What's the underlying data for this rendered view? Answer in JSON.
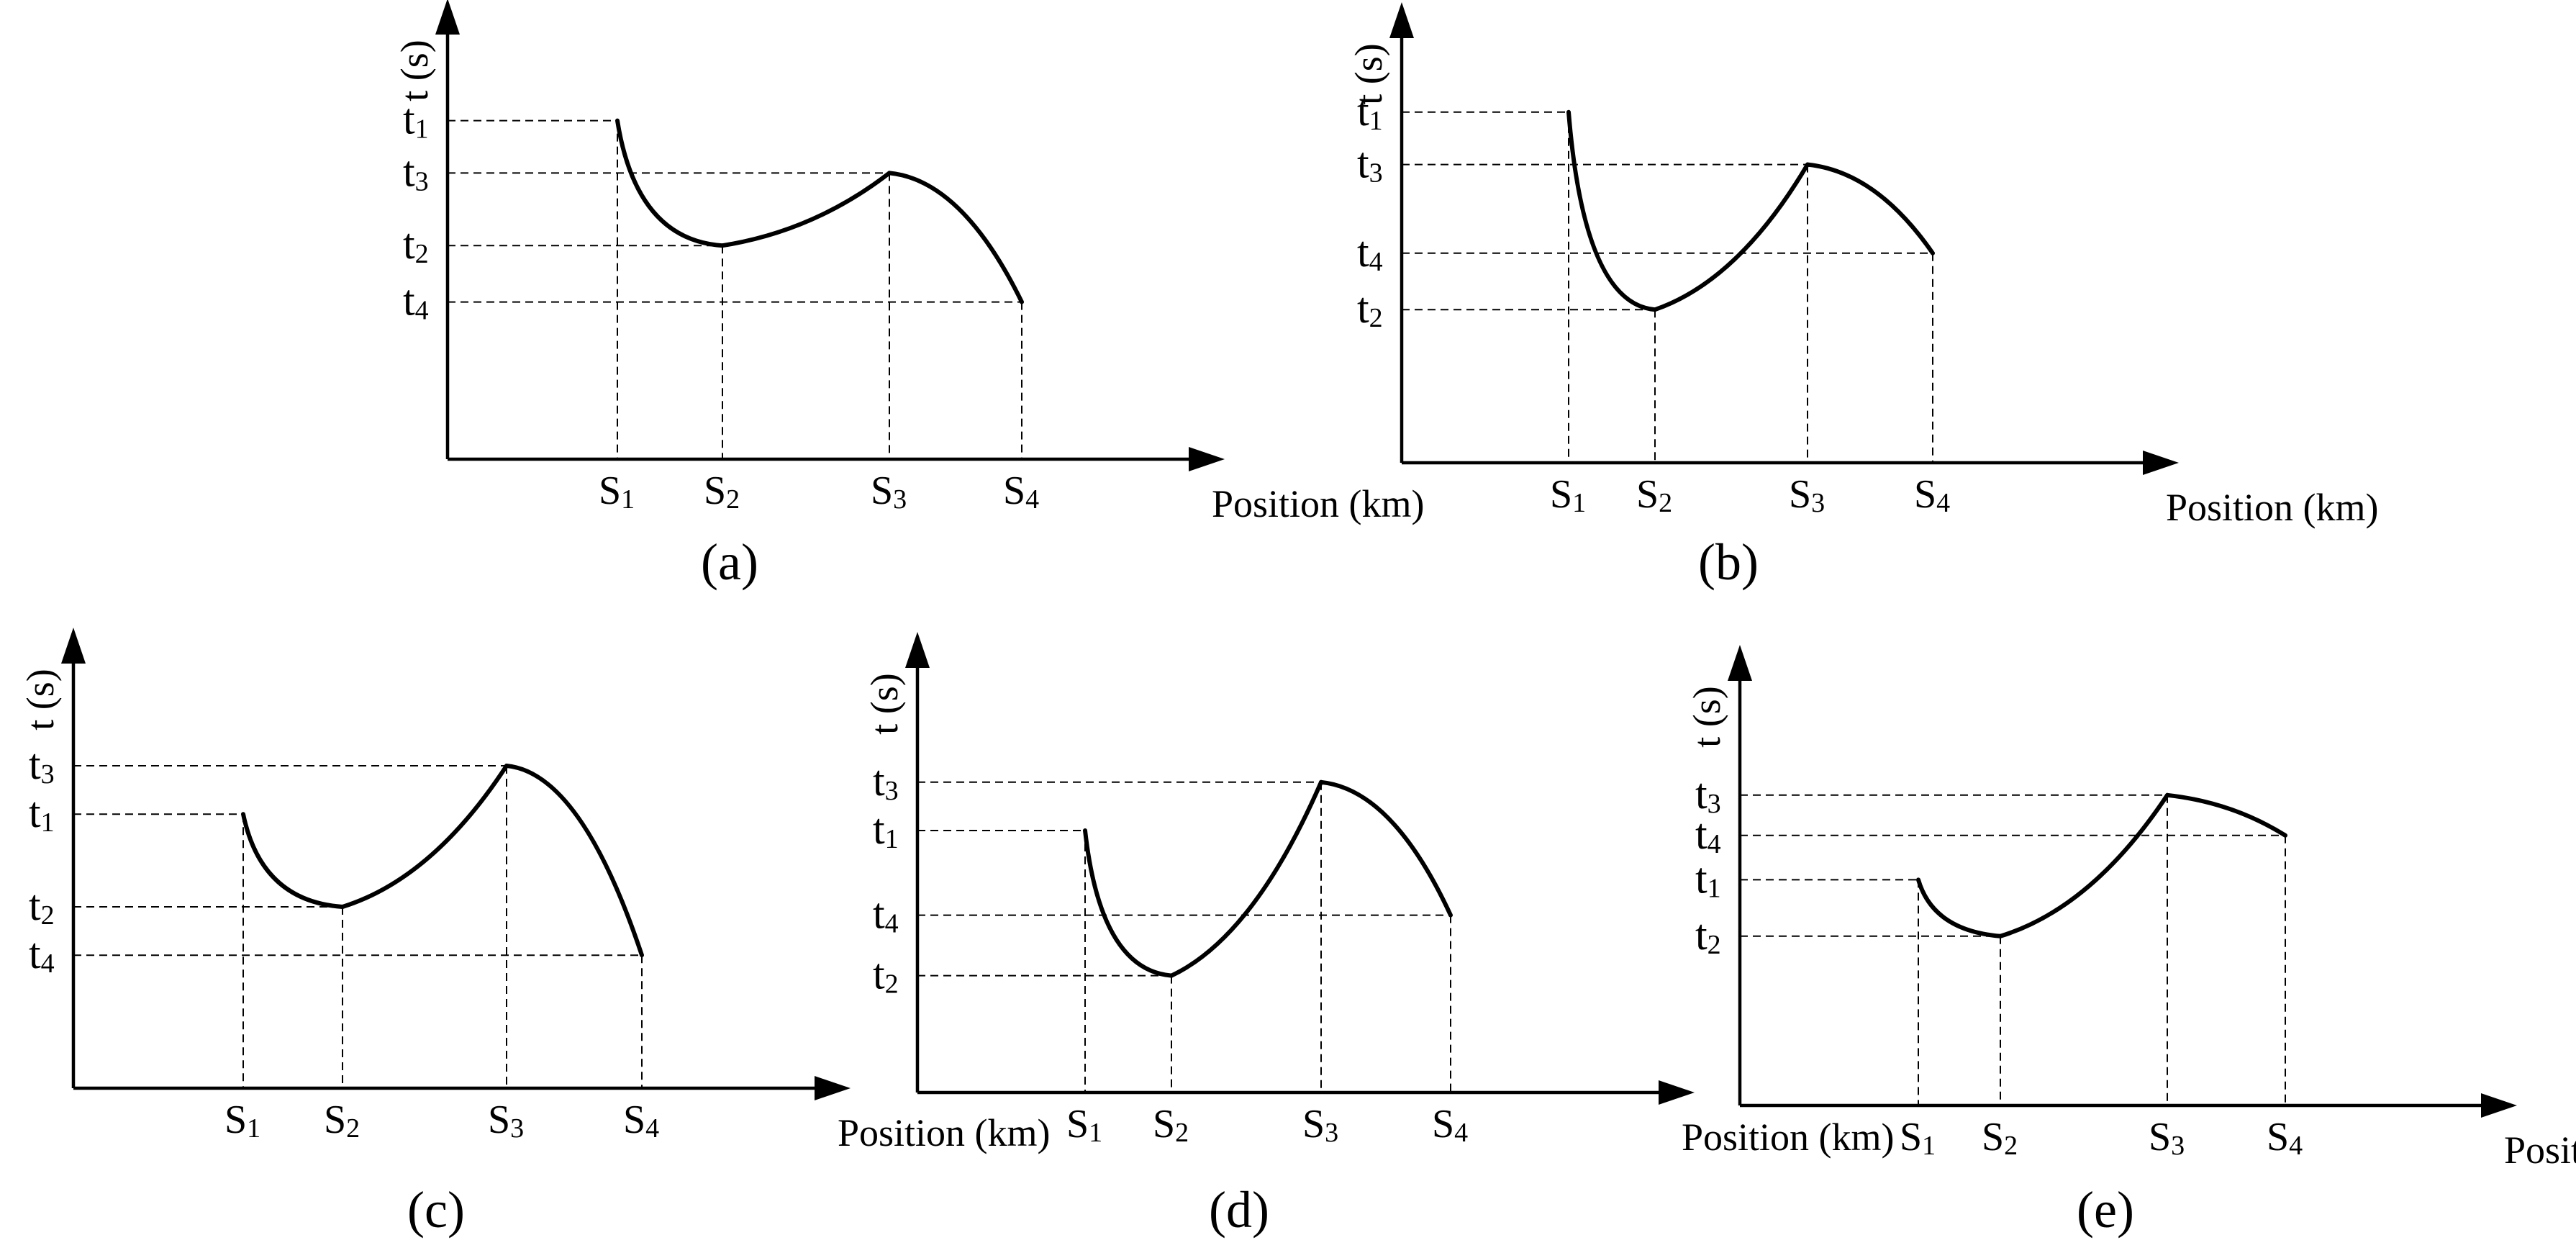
{
  "figure": {
    "y_axis_label": "t (s)",
    "x_axis_label": "Position (km)",
    "position_symbol": "S",
    "time_symbol": "t",
    "point_indices": [
      "1",
      "2",
      "3",
      "4"
    ]
  },
  "chart_data": [
    {
      "type": "line",
      "caption": "(a)",
      "xlabel": "Position (km)",
      "ylabel": "t (s)",
      "x": [
        "S1",
        "S2",
        "S3",
        "S4"
      ],
      "values": {
        "t1": 0.84,
        "t2": 0.53,
        "t3": 0.71,
        "t4": 0.39
      },
      "segments": [
        {
          "from": "S1",
          "to": "S2",
          "shape": "concave-up descending"
        },
        {
          "from": "S2",
          "to": "S3",
          "shape": "convex ascending"
        },
        {
          "from": "S3",
          "to": "S4",
          "shape": "concave-down descending"
        }
      ]
    },
    {
      "type": "line",
      "caption": "(b)",
      "xlabel": "Position (km)",
      "ylabel": "t (s)",
      "x": [
        "S1",
        "S2",
        "S3",
        "S4"
      ],
      "values": {
        "t1": 0.87,
        "t2": 0.38,
        "t3": 0.74,
        "t4": 0.52
      },
      "segments": [
        {
          "from": "S1",
          "to": "S2",
          "shape": "steep descending"
        },
        {
          "from": "S2",
          "to": "S3",
          "shape": "convex ascending"
        },
        {
          "from": "S3",
          "to": "S4",
          "shape": "concave-down descending"
        }
      ]
    },
    {
      "type": "line",
      "caption": "(c)",
      "xlabel": "Position (km)",
      "ylabel": "t (s)",
      "x": [
        "S1",
        "S2",
        "S3",
        "S4"
      ],
      "values": {
        "t1": 0.68,
        "t2": 0.45,
        "t3": 0.8,
        "t4": 0.33
      },
      "segments": [
        {
          "from": "S1",
          "to": "S2",
          "shape": "concave-up descending"
        },
        {
          "from": "S2",
          "to": "S3",
          "shape": "convex ascending"
        },
        {
          "from": "S3",
          "to": "S4",
          "shape": "concave-down descending"
        }
      ]
    },
    {
      "type": "line",
      "caption": "(d)",
      "xlabel": "Position (km)",
      "ylabel": "t (s)",
      "x": [
        "S1",
        "S2",
        "S3",
        "S4"
      ],
      "values": {
        "t1": 0.65,
        "t2": 0.29,
        "t3": 0.77,
        "t4": 0.44
      },
      "segments": [
        {
          "from": "S1",
          "to": "S2",
          "shape": "steep descending"
        },
        {
          "from": "S2",
          "to": "S3",
          "shape": "convex ascending"
        },
        {
          "from": "S3",
          "to": "S4",
          "shape": "concave-down descending"
        }
      ]
    },
    {
      "type": "line",
      "caption": "(e)",
      "xlabel": "Position (km)",
      "ylabel": "t (s)",
      "x": [
        "S1",
        "S2",
        "S3",
        "S4"
      ],
      "values": {
        "t1": 0.56,
        "t2": 0.42,
        "t3": 0.77,
        "t4": 0.67
      },
      "segments": [
        {
          "from": "S1",
          "to": "S2",
          "shape": "concave-up descending"
        },
        {
          "from": "S2",
          "to": "S3",
          "shape": "convex ascending"
        },
        {
          "from": "S3",
          "to": "S4",
          "shape": "gentle descending"
        }
      ]
    }
  ]
}
